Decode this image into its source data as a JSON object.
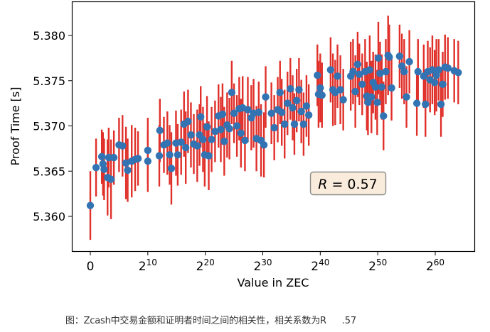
{
  "figure": {
    "caption_prefix": "图：Zcash中交易金额和证明者时间之间的相关性，相关系数为R",
    "caption_suffix": ".57",
    "annotation": {
      "text": "R = 0.57",
      "italic_symbol": "R",
      "rest": " = 0.57",
      "box_fill": "#f9ecdc",
      "box_edge": "#8a8a8a"
    }
  },
  "chart_data": {
    "type": "scatter",
    "subtype": "errorbar",
    "title": "",
    "xlabel": "Value in ZEC",
    "ylabel": "Proof Time [s]",
    "xscale": "log2",
    "xlim_exp": [
      -3.2,
      67
    ],
    "ylim": [
      5.3562,
      5.3838
    ],
    "xticks": [
      {
        "exp": 0,
        "base": "0",
        "sup": ""
      },
      {
        "exp": 10,
        "base": "2",
        "sup": "10"
      },
      {
        "exp": 20,
        "base": "2",
        "sup": "20"
      },
      {
        "exp": 30,
        "base": "2",
        "sup": "30"
      },
      {
        "exp": 40,
        "base": "2",
        "sup": "40"
      },
      {
        "exp": 50,
        "base": "2",
        "sup": "50"
      },
      {
        "exp": 60,
        "base": "2",
        "sup": "60"
      }
    ],
    "yticks": [
      5.36,
      5.365,
      5.37,
      5.375,
      5.38
    ],
    "ytick_labels": [
      "5.360",
      "5.365",
      "5.370",
      "5.375",
      "5.380"
    ],
    "grid": false,
    "legend": null,
    "correlation_R": 0.57,
    "colors": {
      "marker": "#3274b3",
      "errorbar": "#e0302a",
      "axes": "#000000"
    },
    "points_format": [
      "x_log2",
      "y_seconds",
      "err_seconds"
    ],
    "points": [
      [
        0,
        5.3612,
        0.0038
      ],
      [
        1.0,
        5.3654,
        0.0032
      ],
      [
        2.0,
        5.3666,
        0.003
      ],
      [
        2.2,
        5.3658,
        0.0035
      ],
      [
        2.4,
        5.3652,
        0.0034
      ],
      [
        3.0,
        5.3643,
        0.0042
      ],
      [
        3.2,
        5.3665,
        0.0033
      ],
      [
        3.6,
        5.3641,
        0.0044
      ],
      [
        4.1,
        5.3665,
        0.003
      ],
      [
        5.0,
        5.3679,
        0.003
      ],
      [
        5.6,
        5.3678,
        0.0034
      ],
      [
        6.2,
        5.3659,
        0.004
      ],
      [
        6.5,
        5.3651,
        0.0035
      ],
      [
        7.2,
        5.3661,
        0.004
      ],
      [
        7.8,
        5.3663,
        0.0035
      ],
      [
        8.3,
        5.3664,
        0.003
      ],
      [
        10.0,
        5.3673,
        0.0036
      ],
      [
        10.0,
        5.3661,
        0.0034
      ],
      [
        12.0,
        5.3667,
        0.0034
      ],
      [
        12.1,
        5.3695,
        0.0035
      ],
      [
        12.8,
        5.3679,
        0.0031
      ],
      [
        13.4,
        5.3681,
        0.0035
      ],
      [
        13.8,
        5.3668,
        0.0033
      ],
      [
        14.1,
        5.3653,
        0.004
      ],
      [
        14.9,
        5.3681,
        0.0036
      ],
      [
        15.2,
        5.3668,
        0.0034
      ],
      [
        15.8,
        5.3682,
        0.0036
      ],
      [
        16.3,
        5.3702,
        0.0036
      ],
      [
        16.6,
        5.3676,
        0.004
      ],
      [
        17.0,
        5.3705,
        0.0035
      ],
      [
        17.5,
        5.369,
        0.0036
      ],
      [
        18.0,
        5.368,
        0.0033
      ],
      [
        18.6,
        5.3678,
        0.004
      ],
      [
        19.0,
        5.369,
        0.0034
      ],
      [
        19.2,
        5.371,
        0.0034
      ],
      [
        19.6,
        5.3685,
        0.0036
      ],
      [
        19.9,
        5.3668,
        0.0035
      ],
      [
        20.3,
        5.3699,
        0.0034
      ],
      [
        20.6,
        5.3667,
        0.0038
      ],
      [
        21.1,
        5.3685,
        0.0036
      ],
      [
        21.7,
        5.3694,
        0.0034
      ],
      [
        22.3,
        5.3711,
        0.0035
      ],
      [
        22.7,
        5.3696,
        0.0036
      ],
      [
        23.0,
        5.3713,
        0.0034
      ],
      [
        23.3,
        5.3683,
        0.0038
      ],
      [
        23.8,
        5.3701,
        0.0036
      ],
      [
        24.2,
        5.3697,
        0.0034
      ],
      [
        24.6,
        5.3737,
        0.0035
      ],
      [
        25.0,
        5.3714,
        0.0033
      ],
      [
        25.5,
        5.37,
        0.0034
      ],
      [
        25.9,
        5.3719,
        0.0035
      ],
      [
        26.2,
        5.3692,
        0.0038
      ],
      [
        26.5,
        5.372,
        0.0035
      ],
      [
        26.9,
        5.3684,
        0.0034
      ],
      [
        27.4,
        5.3718,
        0.0036
      ],
      [
        28.0,
        5.3709,
        0.0036
      ],
      [
        28.4,
        5.3714,
        0.0038
      ],
      [
        28.9,
        5.3686,
        0.0036
      ],
      [
        29.3,
        5.3715,
        0.0034
      ],
      [
        29.7,
        5.3684,
        0.004
      ],
      [
        30.2,
        5.3679,
        0.0036
      ],
      [
        30.5,
        5.3732,
        0.0034
      ],
      [
        31.5,
        5.3714,
        0.0034
      ],
      [
        32.0,
        5.3698,
        0.0036
      ],
      [
        32.6,
        5.3718,
        0.0036
      ],
      [
        33.0,
        5.3737,
        0.0035
      ],
      [
        33.3,
        5.3715,
        0.0037
      ],
      [
        33.8,
        5.3702,
        0.0038
      ],
      [
        34.3,
        5.3725,
        0.0035
      ],
      [
        34.8,
        5.3741,
        0.0034
      ],
      [
        35.2,
        5.372,
        0.0036
      ],
      [
        35.5,
        5.3702,
        0.0034
      ],
      [
        35.9,
        5.3728,
        0.0035
      ],
      [
        36.3,
        5.374,
        0.0035
      ],
      [
        36.7,
        5.3716,
        0.0035
      ],
      [
        37.1,
        5.3702,
        0.0035
      ],
      [
        37.6,
        5.3722,
        0.0034
      ],
      [
        38.0,
        5.3712,
        0.0034
      ],
      [
        39.5,
        5.3756,
        0.0034
      ],
      [
        39.7,
        5.3735,
        0.0037
      ],
      [
        40.0,
        5.3742,
        0.0038
      ],
      [
        40.3,
        5.3734,
        0.0036
      ],
      [
        41.8,
        5.3762,
        0.0036
      ],
      [
        42.2,
        5.374,
        0.004
      ],
      [
        42.6,
        5.3737,
        0.0036
      ],
      [
        43.0,
        5.3755,
        0.0035
      ],
      [
        43.5,
        5.374,
        0.0038
      ],
      [
        44.0,
        5.3729,
        0.0034
      ],
      [
        45.3,
        5.3755,
        0.0038
      ],
      [
        45.7,
        5.376,
        0.0036
      ],
      [
        46.1,
        5.3738,
        0.004
      ],
      [
        46.5,
        5.3768,
        0.0036
      ],
      [
        46.8,
        5.3757,
        0.0034
      ],
      [
        47.3,
        5.3746,
        0.0034
      ],
      [
        47.8,
        5.376,
        0.0036
      ],
      [
        48.1,
        5.3733,
        0.0038
      ],
      [
        48.3,
        5.3726,
        0.0036
      ],
      [
        48.6,
        5.3762,
        0.0038
      ],
      [
        48.9,
        5.3732,
        0.004
      ],
      [
        49.2,
        5.3748,
        0.0034
      ],
      [
        49.6,
        5.3743,
        0.0036
      ],
      [
        49.9,
        5.3726,
        0.0036
      ],
      [
        50.1,
        5.3775,
        0.004
      ],
      [
        50.4,
        5.3758,
        0.0035
      ],
      [
        50.7,
        5.3743,
        0.0036
      ],
      [
        51.0,
        5.3711,
        0.0038
      ],
      [
        51.4,
        5.376,
        0.0036
      ],
      [
        51.8,
        5.3778,
        0.0044
      ],
      [
        52.0,
        5.3776,
        0.0036
      ],
      [
        52.4,
        5.3742,
        0.0036
      ],
      [
        53.8,
        5.3777,
        0.0035
      ],
      [
        54.2,
        5.3766,
        0.0036
      ],
      [
        54.6,
        5.376,
        0.0036
      ],
      [
        55.0,
        5.3732,
        0.0034
      ],
      [
        55.5,
        5.3771,
        0.0035
      ],
      [
        56.8,
        5.3725,
        0.0036
      ],
      [
        57.0,
        5.376,
        0.0036
      ],
      [
        58.0,
        5.3755,
        0.0035
      ],
      [
        58.3,
        5.3724,
        0.0036
      ],
      [
        58.7,
        5.376,
        0.0034
      ],
      [
        59.1,
        5.3751,
        0.0036
      ],
      [
        59.5,
        5.3762,
        0.0038
      ],
      [
        59.9,
        5.3748,
        0.0036
      ],
      [
        60.2,
        5.3756,
        0.004
      ],
      [
        60.6,
        5.3762,
        0.0034
      ],
      [
        61.0,
        5.3724,
        0.0036
      ],
      [
        61.3,
        5.3746,
        0.0036
      ],
      [
        61.7,
        5.3765,
        0.0036
      ],
      [
        62.2,
        5.3764,
        0.0034
      ],
      [
        63.3,
        5.3761,
        0.0035
      ],
      [
        64.0,
        5.3759,
        0.0035
      ]
    ]
  }
}
